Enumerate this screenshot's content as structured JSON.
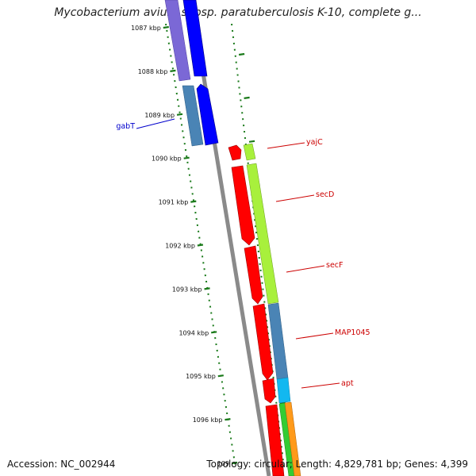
{
  "title": "Mycobacterium avium subsp. paratuberculosis K-10, complete g...",
  "footer": {
    "accession": "Accession: NC_002944",
    "summary": "Topology: circular; Length: 4,829,781 bp; Genes: 4,399"
  },
  "ticks": [
    "1087 kbp",
    "1088 kbp",
    "1089 kbp",
    "1090 kbp",
    "1091 kbp",
    "1092 kbp",
    "1093 kbp",
    "1094 kbp",
    "1095 kbp",
    "1096 kbp",
    "109"
  ],
  "genes": [
    {
      "name": "gabT",
      "color": "#0000cc"
    },
    {
      "name": "yajC",
      "color": "#cc0000"
    },
    {
      "name": "secD",
      "color": "#cc0000"
    },
    {
      "name": "secF",
      "color": "#cc0000"
    },
    {
      "name": "MAP1045",
      "color": "#cc0000"
    },
    {
      "name": "apt",
      "color": "#cc0000"
    }
  ],
  "colors": {
    "backbone": "#8a8a8a",
    "ticks": "#1a7a1a",
    "gene_forward": "#ff0000",
    "gene_reverse": "#0000ff",
    "cog_purple": "#7b68d6",
    "cog_steel": "#4a84b5",
    "cog_lime": "#a8f03c",
    "cog_cyan": "#12b8f0",
    "cog_green": "#33cc33",
    "cog_orange": "#ff9a1a"
  }
}
